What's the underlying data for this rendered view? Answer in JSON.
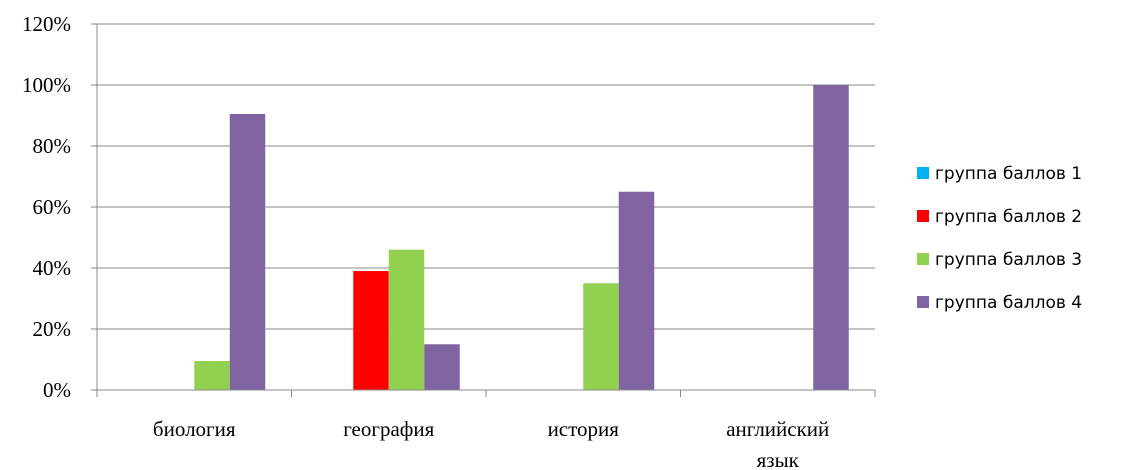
{
  "chart_data": {
    "type": "bar",
    "categories": [
      [
        "биология"
      ],
      [
        "география"
      ],
      [
        "история"
      ],
      [
        "английский",
        "язык"
      ]
    ],
    "series": [
      {
        "name": "группа баллов 1",
        "color": "#00B0F0",
        "values": [
          0,
          0,
          0,
          0
        ]
      },
      {
        "name": "группа баллов 2",
        "color": "#FF0000",
        "values": [
          0,
          39,
          0,
          0
        ]
      },
      {
        "name": "группа баллов 3",
        "color": "#92D050",
        "values": [
          9.5,
          46,
          35,
          0
        ]
      },
      {
        "name": "группа баллов 4",
        "color": "#8064A2",
        "values": [
          90.5,
          15,
          65,
          100
        ]
      }
    ],
    "ylim": [
      0,
      120
    ],
    "yticks": [
      0,
      20,
      40,
      60,
      80,
      100,
      120
    ],
    "ytick_labels": [
      "0%",
      "20%",
      "40%",
      "60%",
      "80%",
      "100%",
      "120%"
    ],
    "grid": true,
    "legend_position": "right"
  }
}
